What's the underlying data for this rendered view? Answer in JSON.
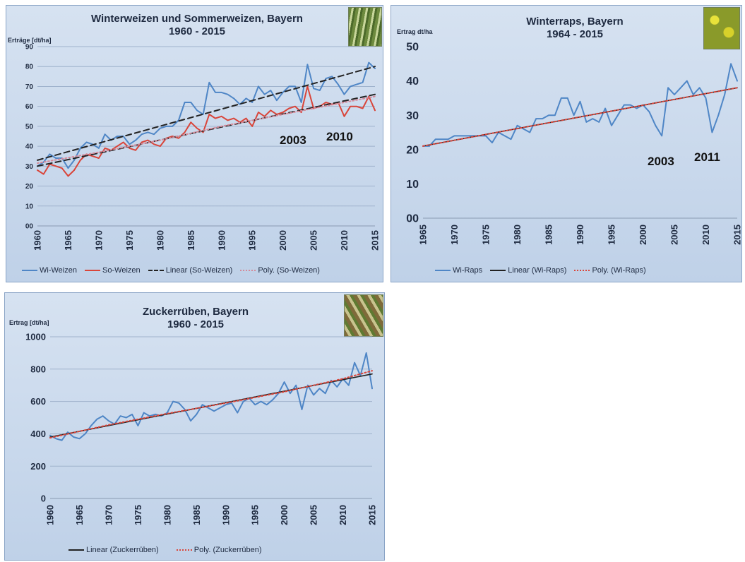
{
  "chart_data": [
    {
      "type": "line",
      "title": "Winterweizen und Sommerweizen, Bayern",
      "subtitle": "1960 - 2015",
      "ylabel": "Erträge [dt/ha]",
      "ylim": [
        0,
        90
      ],
      "yticks": [
        "00",
        "10",
        "20",
        "30",
        "40",
        "50",
        "60",
        "70",
        "80",
        "90"
      ],
      "xlim": [
        1960,
        2015
      ],
      "xticks": [
        "1960",
        "1965",
        "1970",
        "1975",
        "1980",
        "1985",
        "1990",
        "1995",
        "2000",
        "2005",
        "2010",
        "2015"
      ],
      "grid": true,
      "legend_position": "bottom",
      "annotations": [
        "2003",
        "2010"
      ],
      "series": [
        {
          "name": "Wi-Weizen",
          "color": "#4f86c6",
          "style": "solid",
          "x": [
            1960,
            1961,
            1962,
            1963,
            1964,
            1965,
            1966,
            1967,
            1968,
            1969,
            1970,
            1971,
            1972,
            1973,
            1974,
            1975,
            1976,
            1977,
            1978,
            1979,
            1980,
            1981,
            1982,
            1983,
            1984,
            1985,
            1986,
            1987,
            1988,
            1989,
            1990,
            1991,
            1992,
            1993,
            1994,
            1995,
            1996,
            1997,
            1998,
            1999,
            2000,
            2001,
            2002,
            2003,
            2004,
            2005,
            2006,
            2007,
            2008,
            2009,
            2010,
            2011,
            2012,
            2013,
            2014,
            2015
          ],
          "values": [
            30,
            32,
            36,
            34,
            34,
            29,
            33,
            39,
            42,
            41,
            39,
            46,
            43,
            45,
            45,
            41,
            43,
            46,
            47,
            46,
            49,
            50,
            50,
            53,
            62,
            62,
            58,
            56,
            72,
            67,
            67,
            66,
            64,
            61,
            64,
            62,
            70,
            66,
            68,
            63,
            67,
            70,
            70,
            62,
            81,
            69,
            68,
            74,
            75,
            71,
            66,
            70,
            71,
            72,
            82,
            79
          ]
        },
        {
          "name": "So-Weizen",
          "color": "#d9453a",
          "style": "solid",
          "x": [
            1960,
            1961,
            1962,
            1963,
            1964,
            1965,
            1966,
            1967,
            1968,
            1969,
            1970,
            1971,
            1972,
            1973,
            1974,
            1975,
            1976,
            1977,
            1978,
            1979,
            1980,
            1981,
            1982,
            1983,
            1984,
            1985,
            1986,
            1987,
            1988,
            1989,
            1990,
            1991,
            1992,
            1993,
            1994,
            1995,
            1996,
            1997,
            1998,
            1999,
            2000,
            2001,
            2002,
            2003,
            2004,
            2005,
            2006,
            2007,
            2008,
            2009,
            2010,
            2011,
            2012,
            2013,
            2014,
            2015
          ],
          "values": [
            28,
            26,
            31,
            30,
            29,
            25,
            28,
            33,
            36,
            35,
            34,
            39,
            38,
            40,
            42,
            39,
            38,
            42,
            43,
            41,
            40,
            44,
            45,
            44,
            47,
            52,
            49,
            47,
            56,
            54,
            55,
            53,
            54,
            52,
            54,
            50,
            57,
            55,
            58,
            56,
            57,
            59,
            60,
            57,
            70,
            59,
            60,
            62,
            61,
            62,
            55,
            60,
            60,
            59,
            65,
            58
          ]
        },
        {
          "name": "Linear (So-Weizen)",
          "color": "#222222",
          "style": "dashed",
          "x": [
            1960,
            2015
          ],
          "values": [
            30,
            66
          ]
        },
        {
          "name": "Poly. (So-Weizen)",
          "color": "#d48a9a",
          "style": "dotted",
          "x": [
            1960,
            1970,
            1980,
            1990,
            2000,
            2010,
            2015
          ],
          "values": [
            31.5,
            37,
            43,
            50,
            56,
            62,
            65
          ]
        },
        {
          "name": "",
          "color": "#222222",
          "style": "dashed",
          "x": [
            1960,
            2015
          ],
          "values": [
            33,
            80
          ]
        }
      ]
    },
    {
      "type": "line",
      "title": "Winterraps, Bayern",
      "subtitle": "1964 - 2015",
      "ylabel": "Ertrag dt/ha",
      "ylim": [
        0,
        50
      ],
      "yticks": [
        "00",
        "10",
        "20",
        "30",
        "40",
        "50"
      ],
      "xlim": [
        1965,
        2015
      ],
      "xticks": [
        "1965",
        "1970",
        "1975",
        "1980",
        "1985",
        "1990",
        "1995",
        "2000",
        "2005",
        "2010",
        "2015"
      ],
      "grid": false,
      "legend_position": "bottom",
      "annotations": [
        "2003",
        "2011"
      ],
      "series": [
        {
          "name": "Wi-Raps",
          "color": "#4f86c6",
          "style": "solid",
          "x": [
            1965,
            1966,
            1967,
            1968,
            1969,
            1970,
            1971,
            1972,
            1973,
            1974,
            1975,
            1976,
            1977,
            1978,
            1979,
            1980,
            1981,
            1982,
            1983,
            1984,
            1985,
            1986,
            1987,
            1988,
            1989,
            1990,
            1991,
            1992,
            1993,
            1994,
            1995,
            1996,
            1997,
            1998,
            1999,
            2000,
            2001,
            2002,
            2003,
            2004,
            2005,
            2006,
            2007,
            2008,
            2009,
            2010,
            2011,
            2012,
            2013,
            2014,
            2015
          ],
          "values": [
            21,
            21,
            23,
            23,
            23,
            24,
            24,
            24,
            24,
            24,
            24,
            22,
            25,
            24,
            23,
            27,
            26,
            25,
            29,
            29,
            30,
            30,
            35,
            35,
            30,
            34,
            28,
            29,
            28,
            32,
            27,
            30,
            33,
            33,
            32,
            33,
            31,
            27,
            24,
            38,
            36,
            38,
            40,
            36,
            38,
            35,
            25,
            30,
            36,
            45,
            40
          ]
        },
        {
          "name": "Linear (Wi-Raps)",
          "color": "#222222",
          "style": "solid",
          "x": [
            1965,
            2015
          ],
          "values": [
            21,
            38
          ]
        },
        {
          "name": "Poly. (Wi-Raps)",
          "color": "#d9453a",
          "style": "dotted",
          "x": [
            1965,
            2015
          ],
          "values": [
            21,
            38
          ]
        }
      ]
    },
    {
      "type": "line",
      "title": "Zuckerrüben, Bayern",
      "subtitle": "1960 - 2015",
      "ylabel": "Ertrag   [dt/ha]",
      "ylim": [
        0,
        1000
      ],
      "yticks": [
        "0",
        "200",
        "400",
        "600",
        "800",
        "1000"
      ],
      "xlim": [
        1960,
        2015
      ],
      "xticks": [
        "1960",
        "1965",
        "1970",
        "1975",
        "1980",
        "1985",
        "1990",
        "1995",
        "2000",
        "2005",
        "2010",
        "2015"
      ],
      "grid": true,
      "legend_position": "bottom",
      "series": [
        {
          "name": "",
          "color": "#4f86c6",
          "style": "solid",
          "x": [
            1960,
            1961,
            1962,
            1963,
            1964,
            1965,
            1966,
            1967,
            1968,
            1969,
            1970,
            1971,
            1972,
            1973,
            1974,
            1975,
            1976,
            1977,
            1978,
            1979,
            1980,
            1981,
            1982,
            1983,
            1984,
            1985,
            1986,
            1987,
            1988,
            1989,
            1990,
            1991,
            1992,
            1993,
            1994,
            1995,
            1996,
            1997,
            1998,
            1999,
            2000,
            2001,
            2002,
            2003,
            2004,
            2005,
            2006,
            2007,
            2008,
            2009,
            2010,
            2011,
            2012,
            2013,
            2014,
            2015
          ],
          "values": [
            390,
            370,
            360,
            410,
            380,
            370,
            400,
            450,
            490,
            510,
            480,
            460,
            510,
            500,
            520,
            450,
            530,
            510,
            520,
            510,
            530,
            600,
            590,
            550,
            480,
            520,
            580,
            560,
            540,
            560,
            580,
            590,
            530,
            600,
            620,
            580,
            600,
            580,
            610,
            650,
            720,
            650,
            700,
            550,
            700,
            640,
            680,
            650,
            730,
            690,
            740,
            700,
            840,
            760,
            900,
            680
          ]
        },
        {
          "name": "Linear (Zuckerrüben)",
          "color": "#222222",
          "style": "solid",
          "x": [
            1960,
            2015
          ],
          "values": [
            380,
            770
          ]
        },
        {
          "name": "Poly. (Zuckerrüben)",
          "color": "#d9453a",
          "style": "dotted",
          "x": [
            1960,
            1970,
            1980,
            1990,
            2000,
            2010,
            2015
          ],
          "values": [
            375,
            455,
            525,
            590,
            660,
            740,
            790
          ]
        }
      ]
    }
  ]
}
